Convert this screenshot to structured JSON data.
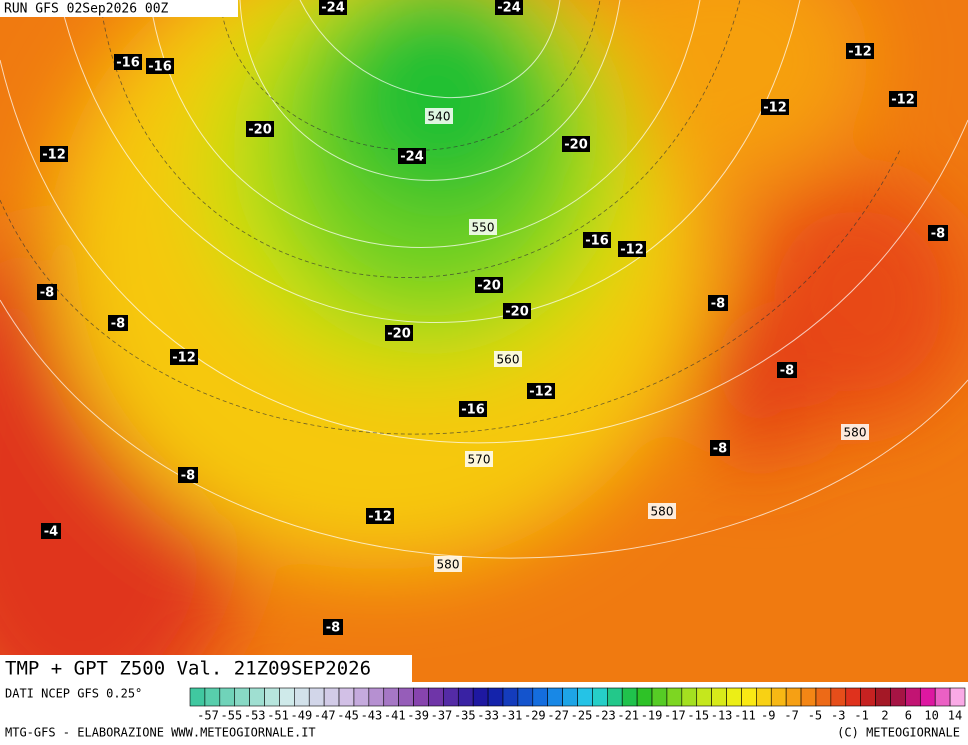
{
  "header": "RUN GFS 02Sep2026 00Z",
  "map_labels": {
    "temperature": [
      "-24",
      "-24",
      "-16",
      "-16",
      "-12",
      "-12",
      "-12",
      "-20",
      "-12",
      "-24",
      "-20",
      "-16",
      "-12",
      "-8",
      "-8",
      "-20",
      "-8",
      "-20",
      "-20",
      "-8",
      "-12",
      "-8",
      "-12",
      "-16",
      "-8",
      "-8",
      "-12",
      "-4",
      "-8"
    ],
    "geopotential": [
      "540",
      "550",
      "560",
      "570",
      "580",
      "580",
      "580"
    ]
  },
  "title": "TMP + GPT Z500 Val. 21Z09SEP2026",
  "source": "DATI NCEP GFS 0.25°",
  "color_scale": {
    "labels": [
      "-57",
      "-55",
      "-53",
      "-51",
      "-49",
      "-47",
      "-45",
      "-43",
      "-41",
      "-39",
      "-37",
      "-35",
      "-33",
      "-31",
      "-29",
      "-27",
      "-25",
      "-23",
      "-21",
      "-19",
      "-17",
      "-15",
      "-13",
      "-11",
      "-9",
      "-7",
      "-5",
      "-3",
      "-1",
      "2",
      "6",
      "10",
      "14"
    ]
  },
  "footer": {
    "left": "MTG-GFS - ELABORAZIONE WWW.METEOGIORNALE.IT",
    "right": "(C) METEOGIORNALE"
  }
}
